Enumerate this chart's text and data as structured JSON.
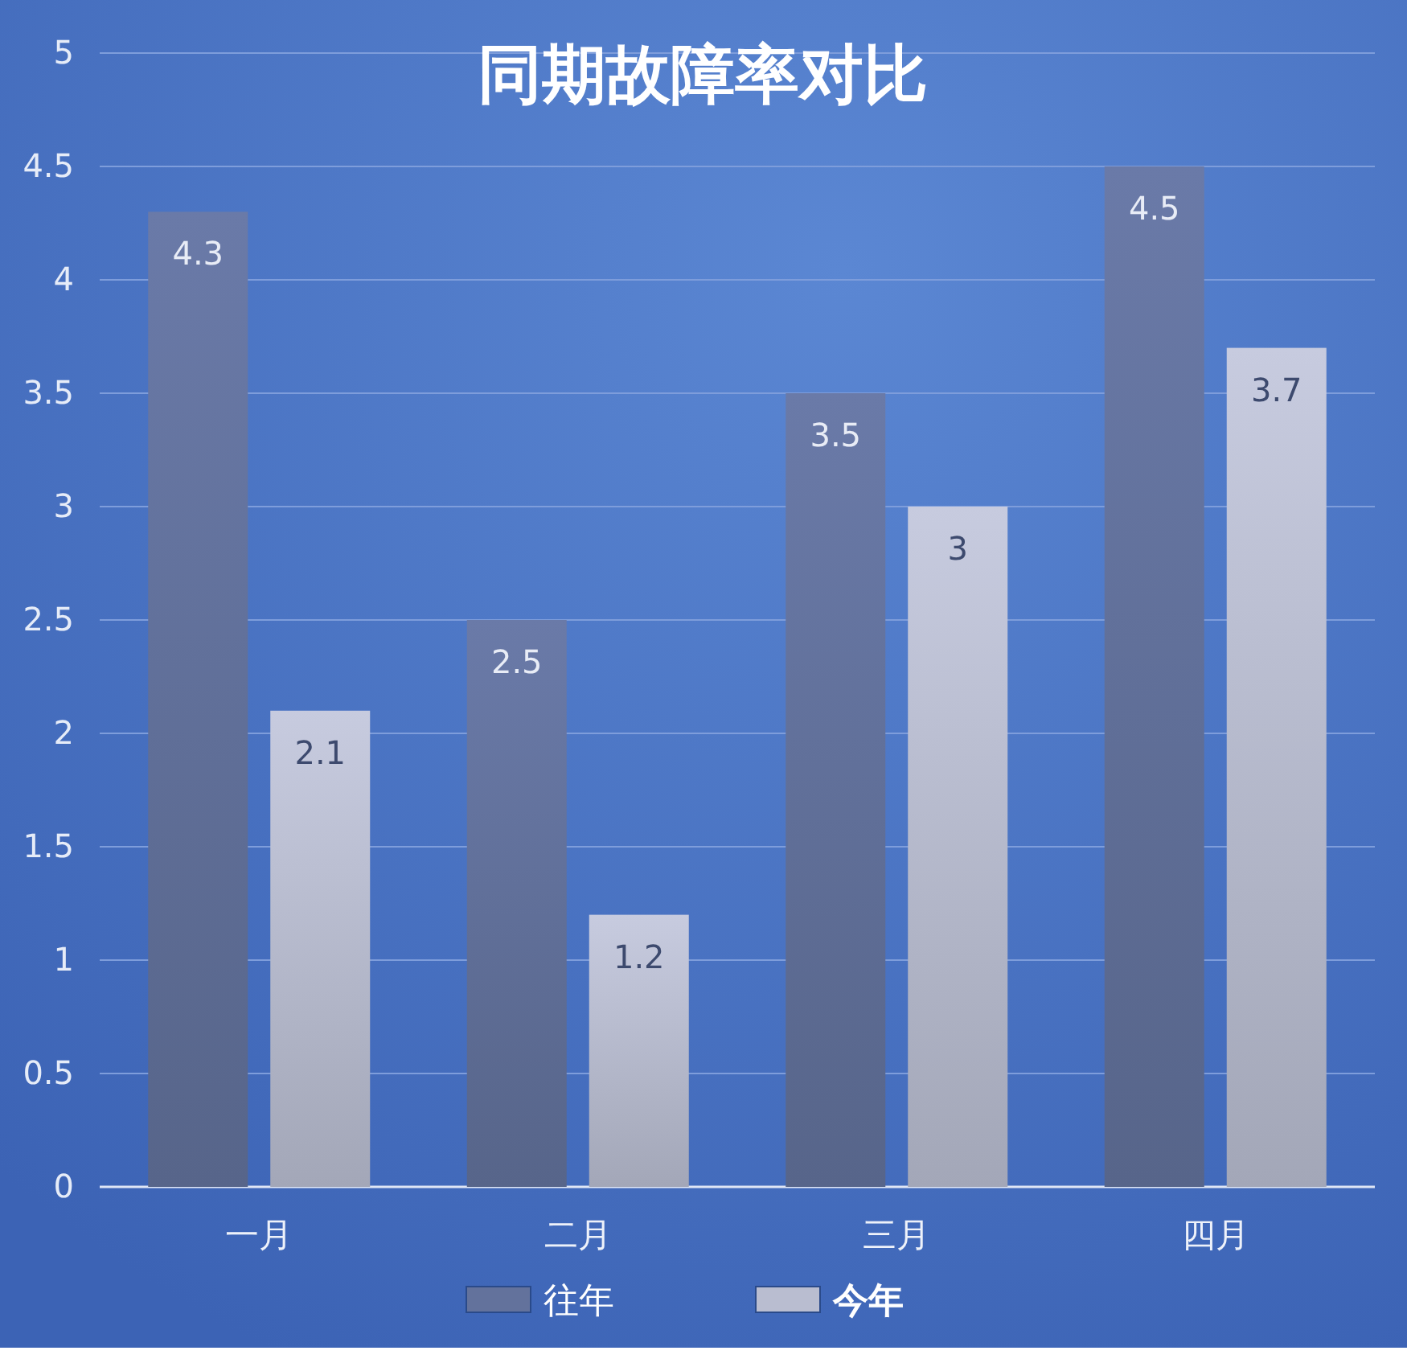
{
  "chart_data": {
    "type": "bar",
    "title": "同期故障率对比",
    "categories": [
      "一月",
      "二月",
      "三月",
      "四月"
    ],
    "series": [
      {
        "name": "往年",
        "color": "#63729c",
        "values": [
          4.3,
          2.5,
          3.5,
          4.5
        ]
      },
      {
        "name": "今年",
        "color": "#b9bdd0",
        "values": [
          2.1,
          1.2,
          3,
          3.7
        ]
      }
    ],
    "ylim": [
      0,
      5
    ],
    "yticks": [
      0,
      0.5,
      1,
      1.5,
      2,
      2.5,
      3,
      3.5,
      4,
      4.5,
      5
    ],
    "grid": "y",
    "data_labels": true,
    "legend": "bottom"
  }
}
